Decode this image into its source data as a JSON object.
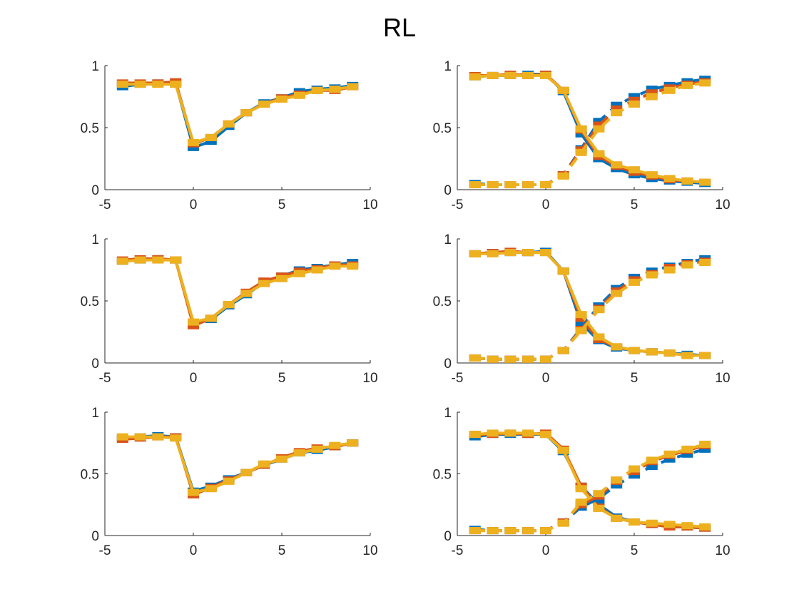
{
  "title": "RL",
  "colors": {
    "series1": "#0072BD",
    "series2": "#D95319",
    "series3": "#EDB120",
    "axis": "#262626"
  },
  "chart_data": [
    {
      "type": "line",
      "panel": "row1-left",
      "xlim": [
        -5,
        10
      ],
      "ylim": [
        0,
        1
      ],
      "xticks": [
        "-5",
        "0",
        "5",
        "10"
      ],
      "yticks": [
        "0",
        "0.5",
        "1"
      ],
      "x": [
        -4,
        -3,
        -2,
        -1,
        0,
        1,
        2,
        3,
        4,
        5,
        6,
        7,
        8,
        9
      ],
      "series": [
        {
          "style": "solid",
          "color": "#0072BD",
          "values": [
            0.83,
            0.85,
            0.86,
            0.86,
            0.34,
            0.39,
            0.51,
            0.62,
            0.7,
            0.74,
            0.79,
            0.81,
            0.82,
            0.84
          ]
        },
        {
          "style": "solid",
          "color": "#D95319",
          "values": [
            0.86,
            0.86,
            0.86,
            0.87,
            0.37,
            0.42,
            0.53,
            0.62,
            0.69,
            0.74,
            0.77,
            0.8,
            0.8,
            0.83
          ]
        },
        {
          "style": "solid",
          "color": "#EDB120",
          "values": [
            0.85,
            0.85,
            0.85,
            0.85,
            0.38,
            0.42,
            0.53,
            0.62,
            0.69,
            0.73,
            0.76,
            0.8,
            0.81,
            0.83
          ]
        }
      ]
    },
    {
      "type": "line",
      "panel": "row1-right",
      "xlim": [
        -5,
        10
      ],
      "ylim": [
        0,
        1
      ],
      "xticks": [
        "-5",
        "0",
        "5",
        "10"
      ],
      "yticks": [
        "0",
        "0.5",
        "1"
      ],
      "x": [
        -4,
        -3,
        -2,
        -1,
        0,
        1,
        2,
        3,
        4,
        5,
        6,
        7,
        8,
        9
      ],
      "series": [
        {
          "style": "solid",
          "color": "#0072BD",
          "values": [
            0.91,
            0.92,
            0.92,
            0.93,
            0.93,
            0.79,
            0.45,
            0.25,
            0.17,
            0.12,
            0.09,
            0.07,
            0.06,
            0.05
          ]
        },
        {
          "style": "solid",
          "color": "#D95319",
          "values": [
            0.92,
            0.92,
            0.93,
            0.92,
            0.93,
            0.8,
            0.48,
            0.27,
            0.19,
            0.14,
            0.11,
            0.08,
            0.07,
            0.06
          ]
        },
        {
          "style": "solid",
          "color": "#EDB120",
          "values": [
            0.91,
            0.92,
            0.92,
            0.92,
            0.92,
            0.8,
            0.49,
            0.29,
            0.2,
            0.16,
            0.12,
            0.09,
            0.07,
            0.06
          ]
        },
        {
          "style": "dashed",
          "color": "#0072BD",
          "values": [
            0.05,
            0.04,
            0.04,
            0.04,
            0.04,
            0.12,
            0.33,
            0.55,
            0.68,
            0.75,
            0.81,
            0.84,
            0.87,
            0.89
          ]
        },
        {
          "style": "dashed",
          "color": "#D95319",
          "values": [
            0.04,
            0.04,
            0.04,
            0.04,
            0.04,
            0.12,
            0.32,
            0.52,
            0.65,
            0.72,
            0.78,
            0.82,
            0.85,
            0.87
          ]
        },
        {
          "style": "dashed",
          "color": "#EDB120",
          "values": [
            0.04,
            0.04,
            0.04,
            0.04,
            0.04,
            0.11,
            0.3,
            0.49,
            0.62,
            0.69,
            0.75,
            0.8,
            0.84,
            0.86
          ]
        }
      ]
    },
    {
      "type": "line",
      "panel": "row2-left",
      "xlim": [
        -5,
        10
      ],
      "ylim": [
        0,
        1
      ],
      "xticks": [
        "-5",
        "0",
        "5",
        "10"
      ],
      "yticks": [
        "0",
        "0.5",
        "1"
      ],
      "x": [
        -4,
        -3,
        -2,
        -1,
        0,
        1,
        2,
        3,
        4,
        5,
        6,
        7,
        8,
        9
      ],
      "series": [
        {
          "style": "solid",
          "color": "#0072BD",
          "values": [
            0.82,
            0.83,
            0.84,
            0.83,
            0.32,
            0.35,
            0.46,
            0.55,
            0.65,
            0.7,
            0.75,
            0.77,
            0.79,
            0.81
          ]
        },
        {
          "style": "solid",
          "color": "#D95319",
          "values": [
            0.83,
            0.84,
            0.84,
            0.83,
            0.3,
            0.36,
            0.47,
            0.57,
            0.66,
            0.7,
            0.74,
            0.76,
            0.79,
            0.79
          ]
        },
        {
          "style": "solid",
          "color": "#EDB120",
          "values": [
            0.82,
            0.83,
            0.83,
            0.83,
            0.33,
            0.36,
            0.47,
            0.56,
            0.64,
            0.68,
            0.72,
            0.75,
            0.78,
            0.78
          ]
        }
      ]
    },
    {
      "type": "line",
      "panel": "row2-right",
      "xlim": [
        -5,
        10
      ],
      "ylim": [
        0,
        1
      ],
      "xticks": [
        "-5",
        "0",
        "5",
        "10"
      ],
      "yticks": [
        "0",
        "0.5",
        "1"
      ],
      "x": [
        -4,
        -3,
        -2,
        -1,
        0,
        1,
        2,
        3,
        4,
        5,
        6,
        7,
        8,
        9
      ],
      "series": [
        {
          "style": "solid",
          "color": "#0072BD",
          "values": [
            0.88,
            0.89,
            0.89,
            0.89,
            0.9,
            0.74,
            0.32,
            0.18,
            0.12,
            0.1,
            0.09,
            0.08,
            0.07,
            0.06
          ]
        },
        {
          "style": "solid",
          "color": "#D95319",
          "values": [
            0.88,
            0.89,
            0.9,
            0.89,
            0.89,
            0.74,
            0.36,
            0.19,
            0.13,
            0.1,
            0.09,
            0.08,
            0.06,
            0.06
          ]
        },
        {
          "style": "solid",
          "color": "#EDB120",
          "values": [
            0.88,
            0.88,
            0.89,
            0.89,
            0.89,
            0.74,
            0.39,
            0.21,
            0.13,
            0.1,
            0.09,
            0.08,
            0.06,
            0.06
          ]
        },
        {
          "style": "dashed",
          "color": "#0072BD",
          "values": [
            0.04,
            0.03,
            0.03,
            0.03,
            0.03,
            0.1,
            0.28,
            0.46,
            0.6,
            0.69,
            0.74,
            0.78,
            0.81,
            0.84
          ]
        },
        {
          "style": "dashed",
          "color": "#D95319",
          "values": [
            0.04,
            0.03,
            0.03,
            0.03,
            0.03,
            0.1,
            0.27,
            0.44,
            0.58,
            0.67,
            0.72,
            0.77,
            0.8,
            0.82
          ]
        },
        {
          "style": "dashed",
          "color": "#EDB120",
          "values": [
            0.04,
            0.03,
            0.03,
            0.03,
            0.03,
            0.1,
            0.26,
            0.43,
            0.56,
            0.65,
            0.71,
            0.75,
            0.79,
            0.81
          ]
        }
      ]
    },
    {
      "type": "line",
      "panel": "row3-left",
      "xlim": [
        -5,
        10
      ],
      "ylim": [
        0,
        1
      ],
      "xticks": [
        "-5",
        "0",
        "5",
        "10"
      ],
      "yticks": [
        "0",
        "0.5",
        "1"
      ],
      "x": [
        -4,
        -3,
        -2,
        -1,
        0,
        1,
        2,
        3,
        4,
        5,
        6,
        7,
        8,
        9
      ],
      "series": [
        {
          "style": "solid",
          "color": "#0072BD",
          "values": [
            0.79,
            0.8,
            0.81,
            0.8,
            0.36,
            0.4,
            0.46,
            0.51,
            0.57,
            0.62,
            0.67,
            0.69,
            0.72,
            0.75
          ]
        },
        {
          "style": "solid",
          "color": "#D95319",
          "values": [
            0.78,
            0.79,
            0.8,
            0.8,
            0.33,
            0.39,
            0.45,
            0.51,
            0.57,
            0.63,
            0.68,
            0.71,
            0.72,
            0.75
          ]
        },
        {
          "style": "solid",
          "color": "#EDB120",
          "values": [
            0.8,
            0.8,
            0.8,
            0.79,
            0.35,
            0.38,
            0.44,
            0.51,
            0.58,
            0.62,
            0.67,
            0.7,
            0.73,
            0.75
          ]
        }
      ]
    },
    {
      "type": "line",
      "panel": "row3-right",
      "xlim": [
        -5,
        10
      ],
      "ylim": [
        0,
        1
      ],
      "xticks": [
        "-5",
        "0",
        "5",
        "10"
      ],
      "yticks": [
        "0",
        "0.5",
        "1"
      ],
      "x": [
        -4,
        -3,
        -2,
        -1,
        0,
        1,
        2,
        3,
        4,
        5,
        6,
        7,
        8,
        9
      ],
      "series": [
        {
          "style": "solid",
          "color": "#0072BD",
          "values": [
            0.8,
            0.82,
            0.82,
            0.82,
            0.82,
            0.68,
            0.4,
            0.25,
            0.15,
            0.11,
            0.09,
            0.08,
            0.07,
            0.06
          ]
        },
        {
          "style": "solid",
          "color": "#D95319",
          "values": [
            0.82,
            0.82,
            0.83,
            0.82,
            0.83,
            0.7,
            0.4,
            0.23,
            0.14,
            0.11,
            0.09,
            0.07,
            0.07,
            0.06
          ]
        },
        {
          "style": "solid",
          "color": "#EDB120",
          "values": [
            0.82,
            0.83,
            0.83,
            0.83,
            0.82,
            0.69,
            0.38,
            0.22,
            0.14,
            0.11,
            0.1,
            0.09,
            0.08,
            0.07
          ]
        },
        {
          "style": "dashed",
          "color": "#0072BD",
          "values": [
            0.05,
            0.04,
            0.04,
            0.04,
            0.04,
            0.11,
            0.23,
            0.3,
            0.41,
            0.49,
            0.56,
            0.62,
            0.66,
            0.7
          ]
        },
        {
          "style": "dashed",
          "color": "#D95319",
          "values": [
            0.04,
            0.04,
            0.04,
            0.04,
            0.04,
            0.11,
            0.25,
            0.32,
            0.44,
            0.52,
            0.6,
            0.65,
            0.69,
            0.73
          ]
        },
        {
          "style": "dashed",
          "color": "#EDB120",
          "values": [
            0.04,
            0.04,
            0.04,
            0.04,
            0.04,
            0.1,
            0.27,
            0.34,
            0.45,
            0.54,
            0.61,
            0.66,
            0.7,
            0.74
          ]
        }
      ]
    }
  ]
}
